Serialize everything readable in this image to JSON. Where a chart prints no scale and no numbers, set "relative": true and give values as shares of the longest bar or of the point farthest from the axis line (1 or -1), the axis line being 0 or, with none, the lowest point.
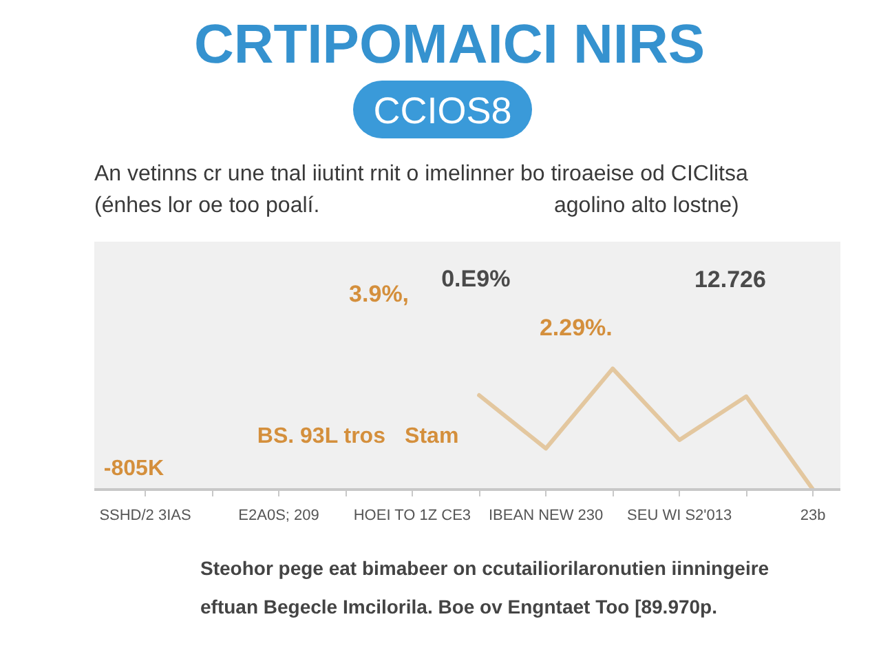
{
  "chart_data": {
    "type": "line",
    "title": "CRTIPOMAICI NIRS",
    "subtitle": "CCIOS8",
    "categories": [
      "SSHD/2 3IAS",
      null,
      "E2A0S; 209",
      null,
      "HOEI TO 1Z CE3",
      null,
      "IBEAN NEW 230",
      null,
      "SEU WI S2'013",
      null,
      "23b"
    ],
    "series": [
      {
        "color": "#e3c79f",
        "values": [
          null,
          null,
          null,
          null,
          null,
          0.78,
          0.34,
          1,
          0.41,
          0.77,
          0
        ]
      }
    ],
    "relative": true,
    "line_style": "solid",
    "annotations": [
      "An vetinns cr une tnal iiutint rnit o imelinner bo tiroaeise od CIClitsa",
      "(énhes lor oe too poalí.",
      "agolino alto lostne)",
      "-805K",
      "3.9%,",
      "0.E9%",
      "2.29%.",
      "12.726",
      "BS. 93L tros",
      "Stam",
      "Steohor pege eat bimabeer on ccutailiorilaronutien iinningeire",
      "eftuan Begecle Imcilorila. Boe ov Engntaet  Too [89.970p."
    ]
  }
}
